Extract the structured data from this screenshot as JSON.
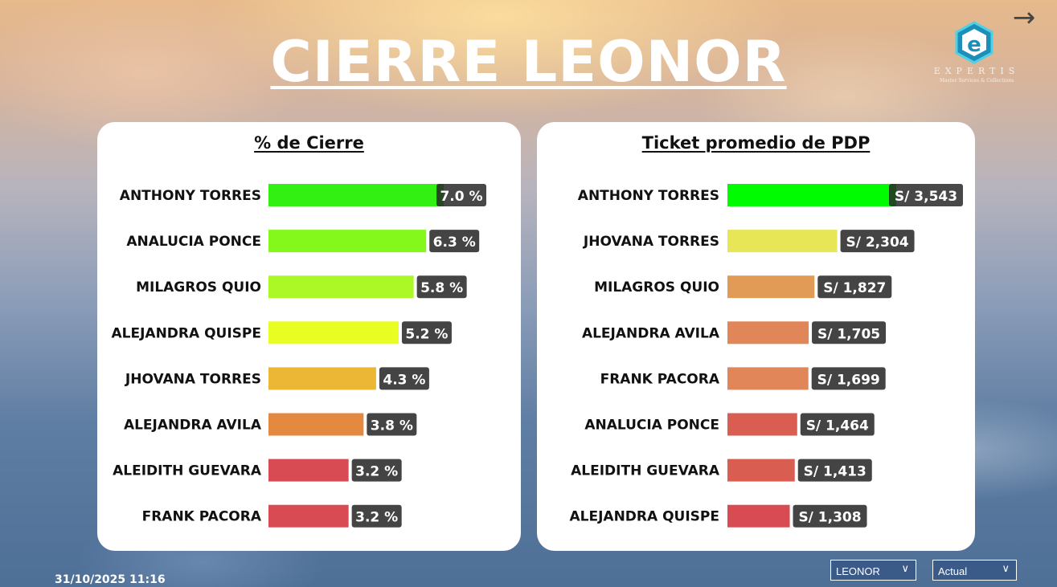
{
  "page": {
    "title": "CIERRE LEONOR",
    "datetime": "31/10/2025 11:16",
    "nav_icon": "arrow-right-icon",
    "logo": {
      "brand": "EXPERTIS",
      "tagline": "Master Services & Collections",
      "icon": "expertis-logo-icon"
    },
    "filters": [
      {
        "selected": "LEONOR",
        "icon": "chevron-down-icon"
      },
      {
        "selected": "Actual",
        "icon": "chevron-down-icon"
      }
    ]
  },
  "chart_data": [
    {
      "type": "bar",
      "orientation": "horizontal",
      "title": "% de Cierre",
      "categories": [
        "ANTHONY TORRES",
        "ANALUCIA PONCE",
        "MILAGROS QUIO",
        "ALEJANDRA QUISPE",
        "JHOVANA TORRES",
        "ALEJANDRA AVILA",
        "ALEIDITH GUEVARA",
        "FRANK PACORA"
      ],
      "values": [
        7.0,
        6.3,
        5.8,
        5.2,
        4.3,
        3.8,
        3.2,
        3.2
      ],
      "value_labels": [
        "7.0 %",
        "6.3 %",
        "5.8 %",
        "5.2 %",
        "4.3 %",
        "3.8 %",
        "3.2 %",
        "3.2 %"
      ],
      "colors": [
        "#31f012",
        "#84f81b",
        "#abf826",
        "#e8fd22",
        "#ecb734",
        "#e48a40",
        "#d94b52",
        "#d94b52"
      ],
      "xlim": [
        0,
        7.0
      ]
    },
    {
      "type": "bar",
      "orientation": "horizontal",
      "title": "Ticket promedio de PDP",
      "categories": [
        "ANTHONY TORRES",
        "JHOVANA TORRES",
        "MILAGROS QUIO",
        "ALEJANDRA AVILA",
        "FRANK PACORA",
        "ANALUCIA PONCE",
        "ALEIDITH GUEVARA",
        "ALEJANDRA QUISPE"
      ],
      "values": [
        3543,
        2304,
        1827,
        1705,
        1699,
        1464,
        1413,
        1308
      ],
      "value_labels": [
        "S/ 3,543",
        "S/ 2,304",
        "S/ 1,827",
        "S/ 1,705",
        "S/ 1,699",
        "S/ 1,464",
        "S/ 1,413",
        "S/ 1,308"
      ],
      "colors": [
        "#00fc00",
        "#e6e656",
        "#e29b56",
        "#e08659",
        "#e08659",
        "#da5d52",
        "#da5d52",
        "#d94b52"
      ],
      "xlim": [
        0,
        3543
      ]
    }
  ]
}
